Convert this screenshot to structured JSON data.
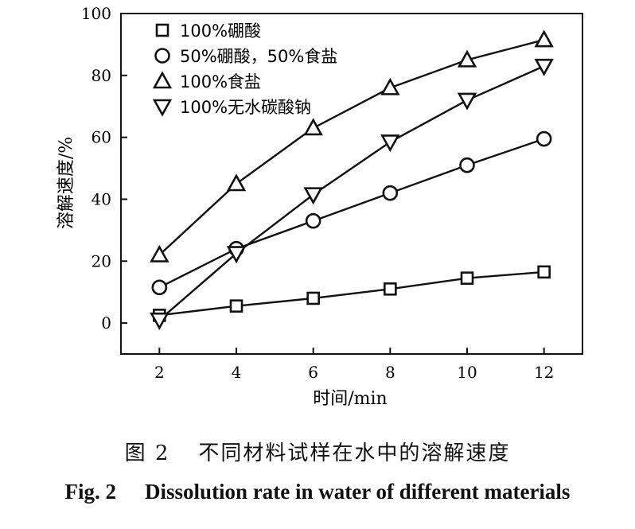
{
  "chart_data": {
    "type": "line",
    "x": [
      2,
      4,
      6,
      8,
      10,
      12
    ],
    "xlim": [
      1,
      13
    ],
    "ylim": [
      -10,
      100
    ],
    "xticks": [
      2,
      4,
      6,
      8,
      10,
      12
    ],
    "yticks": [
      0,
      20,
      40,
      60,
      80,
      100
    ],
    "xlabel": "时间/min",
    "ylabel": "溶解速度/%",
    "legend_position": "top-left",
    "series": [
      {
        "name": "100%硼酸",
        "marker": "square",
        "values": [
          2.5,
          5.5,
          8,
          11,
          14.5,
          16.5
        ]
      },
      {
        "name": "50%硼酸，50%食盐",
        "marker": "circle",
        "values": [
          11.5,
          24,
          33,
          42,
          51,
          59.5
        ]
      },
      {
        "name": "100%食盐",
        "marker": "triangle-up",
        "values": [
          22,
          45,
          63,
          76,
          85,
          91.5
        ]
      },
      {
        "name": "100%无水碳酸钠",
        "marker": "triangle-down",
        "values": [
          1,
          22.5,
          41.5,
          58.5,
          72,
          83
        ]
      }
    ]
  },
  "caption": {
    "figure_number_cn": "图 2",
    "title_cn": "不同材料试样在水中的溶解速度",
    "figure_number_en": "Fig. 2",
    "title_en": "Dissolution rate in water of different materials"
  }
}
